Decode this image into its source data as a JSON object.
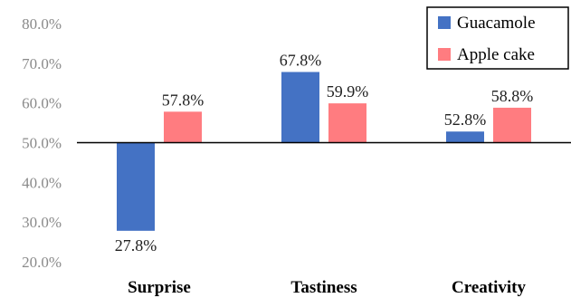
{
  "chart_data": {
    "type": "bar",
    "categories": [
      "Surprise",
      "Tastiness",
      "Creativity"
    ],
    "series": [
      {
        "name": "Guacamole",
        "values": [
          27.8,
          67.8,
          52.8
        ],
        "labels": [
          "27.8%",
          "67.8%",
          "52.8%"
        ],
        "color": "#4472C4"
      },
      {
        "name": "Apple cake",
        "values": [
          57.8,
          59.9,
          58.8
        ],
        "labels": [
          "57.8%",
          "59.9%",
          "58.8%"
        ],
        "color": "#FF7C80"
      }
    ],
    "baseline": 50,
    "ylim": [
      20,
      80
    ],
    "yticks": [
      20,
      30,
      40,
      50,
      60,
      70,
      80
    ],
    "ytick_labels": [
      "20.0%",
      "30.0%",
      "40.0%",
      "50.0%",
      "60.0%",
      "70.0%",
      "80.0%"
    ],
    "title": "",
    "xlabel": "",
    "ylabel": "",
    "grid": false,
    "legend_position": "top-right"
  }
}
